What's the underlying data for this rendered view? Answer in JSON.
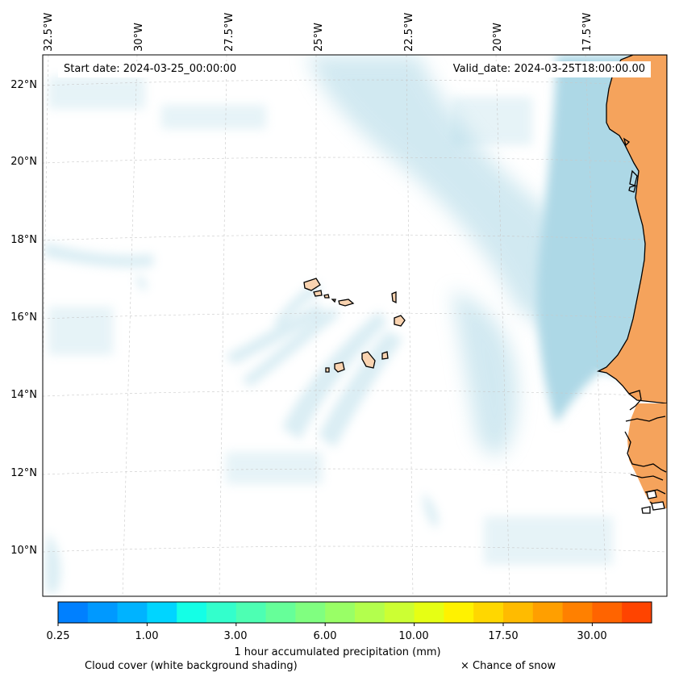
{
  "map": {
    "start_date": "Start date: 2024-03-25_00:00:00",
    "valid_date": "Valid_date: 2024-03-25T18:00:00.00",
    "longitude_labels": [
      "32.5°W",
      "30°W",
      "27.5°W",
      "25°W",
      "22.5°W",
      "20°W",
      "17.5°W"
    ],
    "latitude_labels": [
      "22°N",
      "20°N",
      "18°N",
      "16°N",
      "14°N",
      "12°N",
      "10°N"
    ],
    "colors": {
      "land": "#f5a35c",
      "island_land": "#f9d3b0",
      "cloud_shading": "#add8e6",
      "coastline": "#000000",
      "gridline": "#c8c8c8"
    }
  },
  "colorbar": {
    "title": "1 hour accumulated precipitation (mm)",
    "tick_labels": [
      "0.25",
      "1.00",
      "3.00",
      "6.00",
      "10.00",
      "17.50",
      "30.00"
    ],
    "colors": [
      "#0080ff",
      "#0099ff",
      "#00b3ff",
      "#00d5ff",
      "#14ffe6",
      "#33ffcc",
      "#4dffb3",
      "#66ff99",
      "#80ff80",
      "#99ff66",
      "#b3ff4d",
      "#ccff33",
      "#e6ff14",
      "#fff200",
      "#ffd700",
      "#ffbb00",
      "#ff9f00",
      "#ff8000",
      "#ff6400",
      "#ff4400"
    ]
  },
  "legend": {
    "cloud_cover": "Cloud cover (white background shading)",
    "snow": "× Chance of snow"
  }
}
